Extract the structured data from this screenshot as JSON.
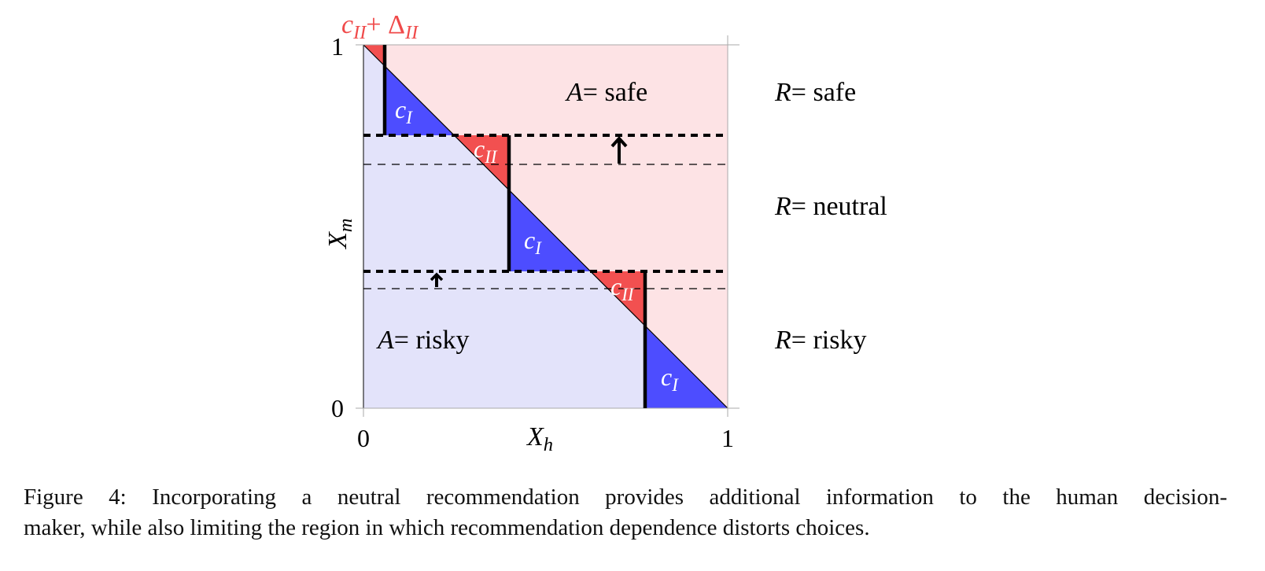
{
  "figure": {
    "x_axis": {
      "label": {
        "main": "X",
        "sub": "h"
      },
      "ticks": [
        "0",
        "1"
      ]
    },
    "y_axis": {
      "label": {
        "main": "X",
        "sub": "m"
      },
      "ticks": [
        "0",
        "1"
      ]
    },
    "top_label": {
      "main": "c",
      "sub": "II",
      "op": "+ Δ",
      "sub2": "II"
    },
    "regions": [
      {
        "var": "A",
        "text": "= safe"
      },
      {
        "var": "A",
        "text": "= risky"
      }
    ],
    "cells": [
      {
        "main": "c",
        "sub": "I"
      },
      {
        "main": "c",
        "sub": "II"
      },
      {
        "main": "c",
        "sub": "I"
      },
      {
        "main": "c",
        "sub": "II"
      },
      {
        "main": "c",
        "sub": "I"
      }
    ],
    "recommendations": [
      {
        "var": "R",
        "text": "= safe"
      },
      {
        "var": "R",
        "text": "= neutral"
      },
      {
        "var": "R",
        "text": "= risky"
      }
    ]
  },
  "caption": [
    "Figure 4: Incorporating a neutral recommendation provides additional information to the human decision-",
    "maker, while also limiting the region in which recommendation dependence distorts choices."
  ]
}
